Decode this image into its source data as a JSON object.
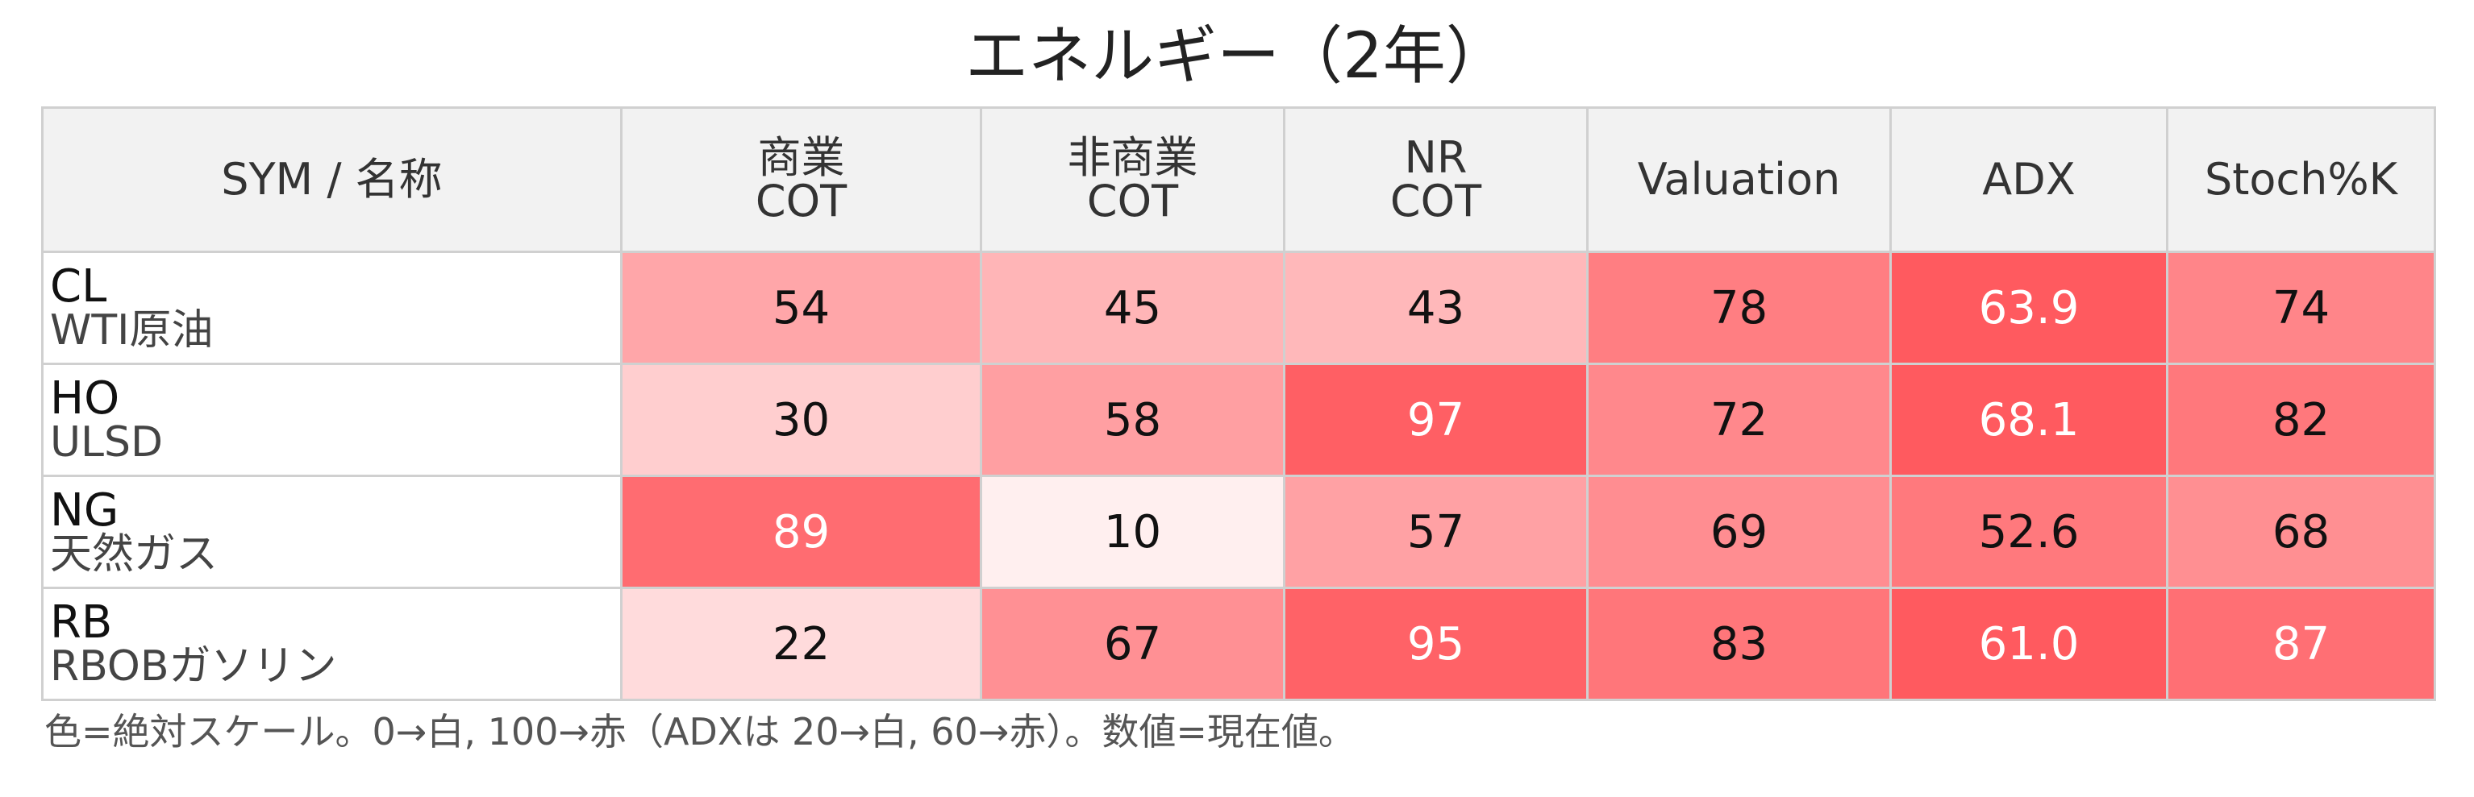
{
  "title": "エネルギー（2年）",
  "chart_data": {
    "type": "heatmap",
    "title": "エネルギー（2年）",
    "row_header": "SYM / 名称",
    "columns": [
      {
        "key": "commercial_cot",
        "label_lines": [
          "商業",
          "COT"
        ],
        "scale": [
          0,
          100
        ]
      },
      {
        "key": "noncommercial_cot",
        "label_lines": [
          "非商業",
          "COT"
        ],
        "scale": [
          0,
          100
        ]
      },
      {
        "key": "nr_cot",
        "label_lines": [
          "NR",
          "COT"
        ],
        "scale": [
          0,
          100
        ]
      },
      {
        "key": "valuation",
        "label_lines": [
          "Valuation"
        ],
        "scale": [
          0,
          100
        ]
      },
      {
        "key": "adx",
        "label_lines": [
          "ADX"
        ],
        "scale": [
          20,
          60
        ]
      },
      {
        "key": "stoch_k",
        "label_lines": [
          "Stoch%K"
        ],
        "scale": [
          0,
          100
        ]
      }
    ],
    "rows": [
      {
        "sym": "CL",
        "name": "WTI原油",
        "values": [
          "54",
          "45",
          "43",
          "78",
          "63.9",
          "74"
        ]
      },
      {
        "sym": "HO",
        "name": "ULSD",
        "values": [
          "30",
          "58",
          "97",
          "72",
          "68.1",
          "82"
        ]
      },
      {
        "sym": "NG",
        "name": "天然ガス",
        "values": [
          "89",
          "10",
          "57",
          "69",
          "52.6",
          "68"
        ]
      },
      {
        "sym": "RB",
        "name": "RBOBガソリン",
        "values": [
          "22",
          "67",
          "95",
          "83",
          "61.0",
          "87"
        ]
      }
    ],
    "color_low": "#ffffff",
    "color_high": "#ff5a5f",
    "text_dark": "#111111",
    "text_light": "#ffffff"
  },
  "note": "色=絶対スケール。0→白, 100→赤（ADXは 20→白, 60→赤）。数値=現在値。"
}
